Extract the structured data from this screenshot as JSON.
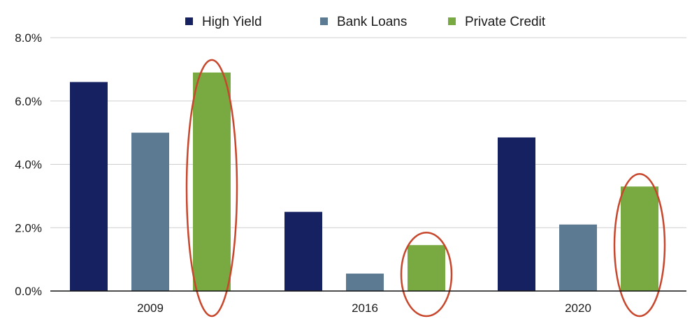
{
  "chart_data": {
    "type": "bar",
    "categories": [
      "2009",
      "2016",
      "2020"
    ],
    "series": [
      {
        "name": "High Yield",
        "color": "#162161",
        "values": [
          6.6,
          2.5,
          4.85
        ]
      },
      {
        "name": "Bank Loans",
        "color": "#5c7a92",
        "values": [
          5.0,
          0.55,
          2.1
        ]
      },
      {
        "name": "Private Credit",
        "color": "#79a941",
        "values": [
          6.9,
          1.45,
          3.3
        ]
      }
    ],
    "y_ticks": [
      "0.0%",
      "2.0%",
      "4.0%",
      "6.0%",
      "8.0%"
    ],
    "ylim": [
      0,
      8
    ],
    "grid": true,
    "legend_position": "top-center",
    "highlight": {
      "series": "Private Credit",
      "shape": "ellipse",
      "color": "#c8462b"
    }
  }
}
